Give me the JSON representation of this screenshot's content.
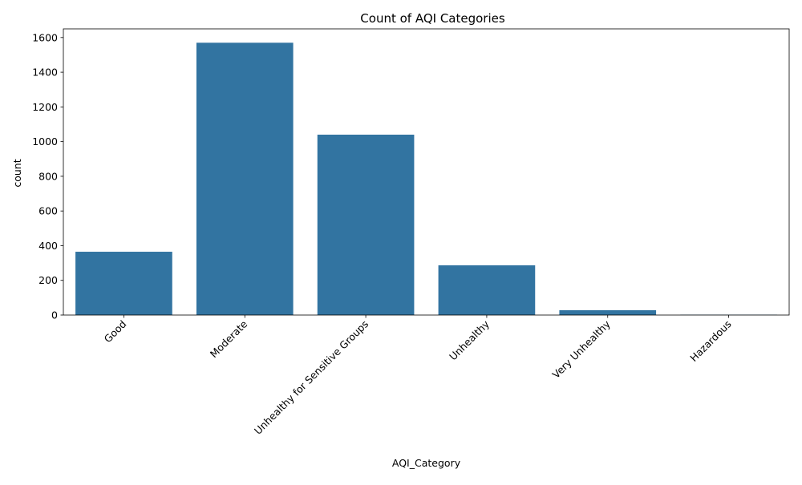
{
  "chart_data": {
    "type": "bar",
    "title": "Count of AQI Categories",
    "xlabel": "AQI_Category",
    "ylabel": "count",
    "categories": [
      "Good",
      "Moderate",
      "Unhealthy for Sensitive Groups",
      "Unhealthy",
      "Very Unhealthy",
      "Hazardous"
    ],
    "values": [
      365,
      1570,
      1040,
      287,
      28,
      2
    ],
    "ylim": [
      0,
      1650
    ],
    "yticks": [
      0,
      200,
      400,
      600,
      800,
      1000,
      1200,
      1400,
      1600
    ],
    "xtick_rotation": 45,
    "grid": false,
    "legend": "none",
    "bar_color": "#3274a1"
  }
}
